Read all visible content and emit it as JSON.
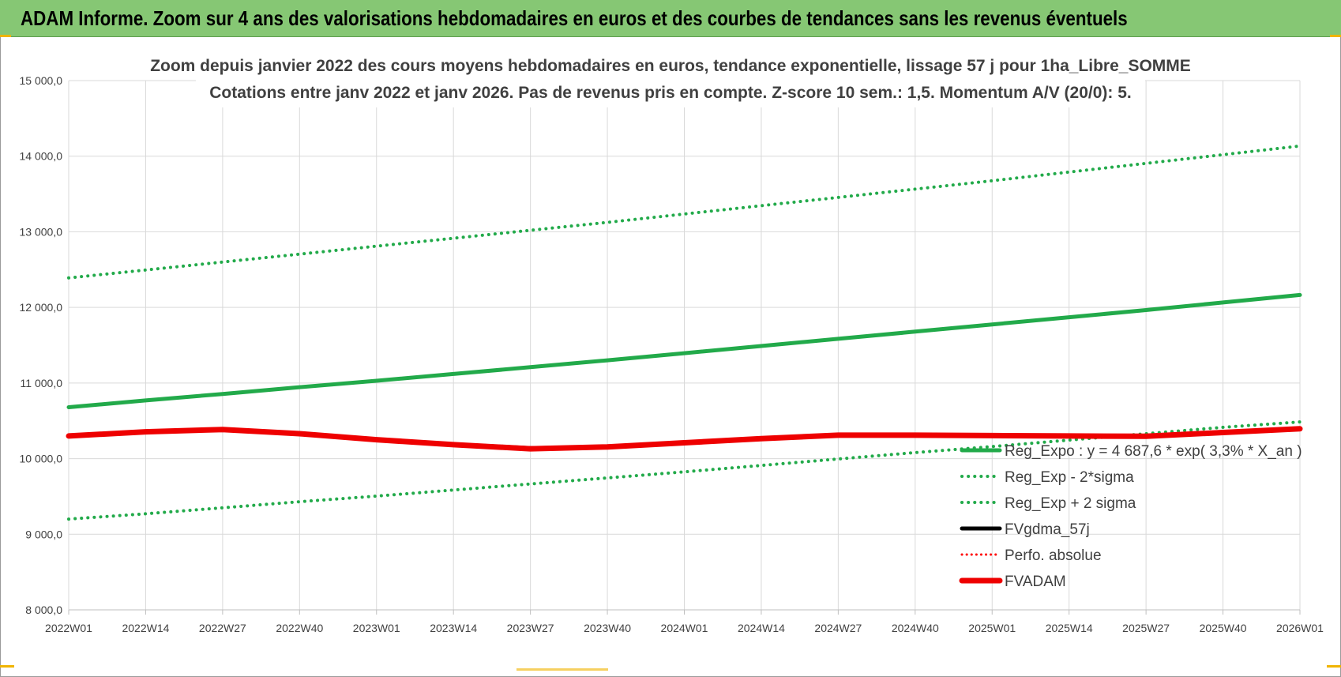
{
  "banner": {
    "title": "ADAM Informe. Zoom sur 4 ans des valorisations hebdomadaires en euros et des courbes de tendances sans les revenus éventuels",
    "color": "#86c774"
  },
  "chart_data": {
    "type": "line",
    "title_line1": "Zoom depuis janvier 2022 des cours moyens hebdomadaires en euros, tendance exponentielle, lissage 57 j pour 1ha_Libre_SOMME",
    "title_line2": "Cotations entre janv 2022 et janv 2026. Pas de revenus pris en compte. Z-score 10 sem.: 1,5. Momentum A/V (20/0): 5.",
    "xlabel": "",
    "ylabel": "",
    "ylim": [
      8000,
      15000
    ],
    "yticks": [
      "8 000,0",
      "9 000,0",
      "10 000,0",
      "11 000,0",
      "12 000,0",
      "13 000,0",
      "14 000,0",
      "15 000,0"
    ],
    "ytick_values": [
      8000,
      9000,
      10000,
      11000,
      12000,
      13000,
      14000,
      15000
    ],
    "categories": [
      "2022W01",
      "2022W14",
      "2022W27",
      "2022W40",
      "2023W01",
      "2023W14",
      "2023W27",
      "2023W40",
      "2024W01",
      "2024W14",
      "2024W27",
      "2024W40",
      "2025W01",
      "2025W14",
      "2025W27",
      "2025W40",
      "2026W01"
    ],
    "legend_position": "bottom-right",
    "series": [
      {
        "name": "Reg_Expo : y = 4 687,6 * exp( 3,3% *  X_an )",
        "style": "solid",
        "color": "#22aa4a",
        "values": [
          10680,
          10770,
          10855,
          10945,
          11030,
          11120,
          11210,
          11300,
          11395,
          11490,
          11585,
          11680,
          11775,
          11870,
          11965,
          12065,
          12165
        ]
      },
      {
        "name": "Reg_Exp - 2*sigma",
        "style": "dotted",
        "color": "#22aa4a",
        "values": [
          9200,
          9270,
          9350,
          9430,
          9505,
          9585,
          9665,
          9745,
          9825,
          9910,
          9995,
          10080,
          10160,
          10245,
          10330,
          10415,
          10485
        ]
      },
      {
        "name": "Reg_Exp + 2 sigma",
        "style": "dotted",
        "color": "#22aa4a",
        "values": [
          12390,
          12495,
          12600,
          12705,
          12810,
          12915,
          13020,
          13125,
          13235,
          13345,
          13455,
          13565,
          13675,
          13790,
          13905,
          14020,
          14135
        ]
      },
      {
        "name": "FVgdma_57j",
        "style": "solid",
        "color": "#000000",
        "values": [
          10300,
          10350,
          10380,
          10330,
          10250,
          10190,
          10140,
          10155,
          10210,
          10265,
          10305,
          10310,
          10305,
          10300,
          10300,
          10340,
          10395
        ]
      },
      {
        "name": "Perfo. absolue",
        "style": "dotted",
        "color": "#ff0000",
        "values": [
          10300,
          10355,
          10385,
          10330,
          10250,
          10185,
          10130,
          10155,
          10210,
          10265,
          10310,
          10310,
          10305,
          10300,
          10295,
          10345,
          10395
        ]
      },
      {
        "name": "FVADAM",
        "style": "thick",
        "color": "#ee0000",
        "values": [
          10300,
          10355,
          10385,
          10330,
          10250,
          10185,
          10130,
          10155,
          10210,
          10265,
          10310,
          10310,
          10305,
          10300,
          10295,
          10345,
          10395
        ]
      }
    ]
  }
}
